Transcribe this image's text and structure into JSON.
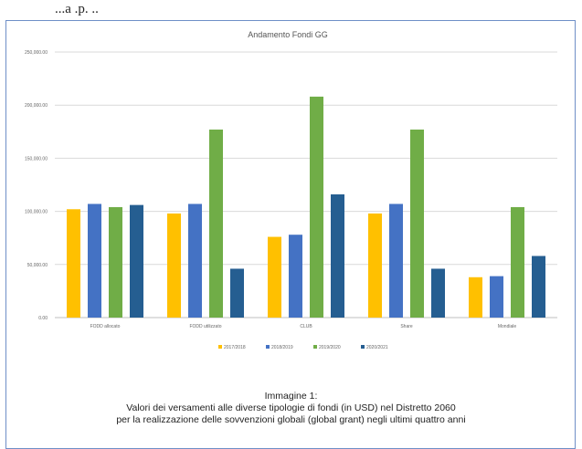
{
  "page_top_text": "...a .p. ..",
  "chart_data": {
    "type": "bar",
    "title": "Andamento Fondi GG",
    "xlabel": "",
    "ylabel": "",
    "ylim": [
      0,
      250000
    ],
    "yticks": [
      0,
      50000,
      100000,
      150000,
      200000,
      250000
    ],
    "ytick_labels": [
      "0.00",
      "50,000.00",
      "100,000.00",
      "150,000.00",
      "200,000.00",
      "250,000.00"
    ],
    "grid": true,
    "legend_position": "bottom",
    "categories": [
      "FODD allocato",
      "FODD utilizzato",
      "CLUB",
      "Share",
      "Mondiale"
    ],
    "series": [
      {
        "name": "2017/2018",
        "color": "#ffc000",
        "values": [
          102000,
          98000,
          76000,
          98000,
          38000
        ]
      },
      {
        "name": "2018/2019",
        "color": "#4472c4",
        "values": [
          107000,
          107000,
          78000,
          107000,
          39000
        ]
      },
      {
        "name": "2019/2020",
        "color": "#70ad47",
        "values": [
          104000,
          177000,
          208000,
          177000,
          104000
        ]
      },
      {
        "name": "2020/2021",
        "color": "#255e91",
        "values": [
          106000,
          46000,
          116000,
          46000,
          58000
        ]
      }
    ]
  },
  "caption": {
    "line1": "Immagine 1:",
    "line2": "Valori dei versamenti alle diverse tipologie di fondi (in USD) nel Distretto 2060",
    "line3": "per la realizzazione delle sovvenzioni globali (global grant) negli ultimi quattro anni"
  }
}
